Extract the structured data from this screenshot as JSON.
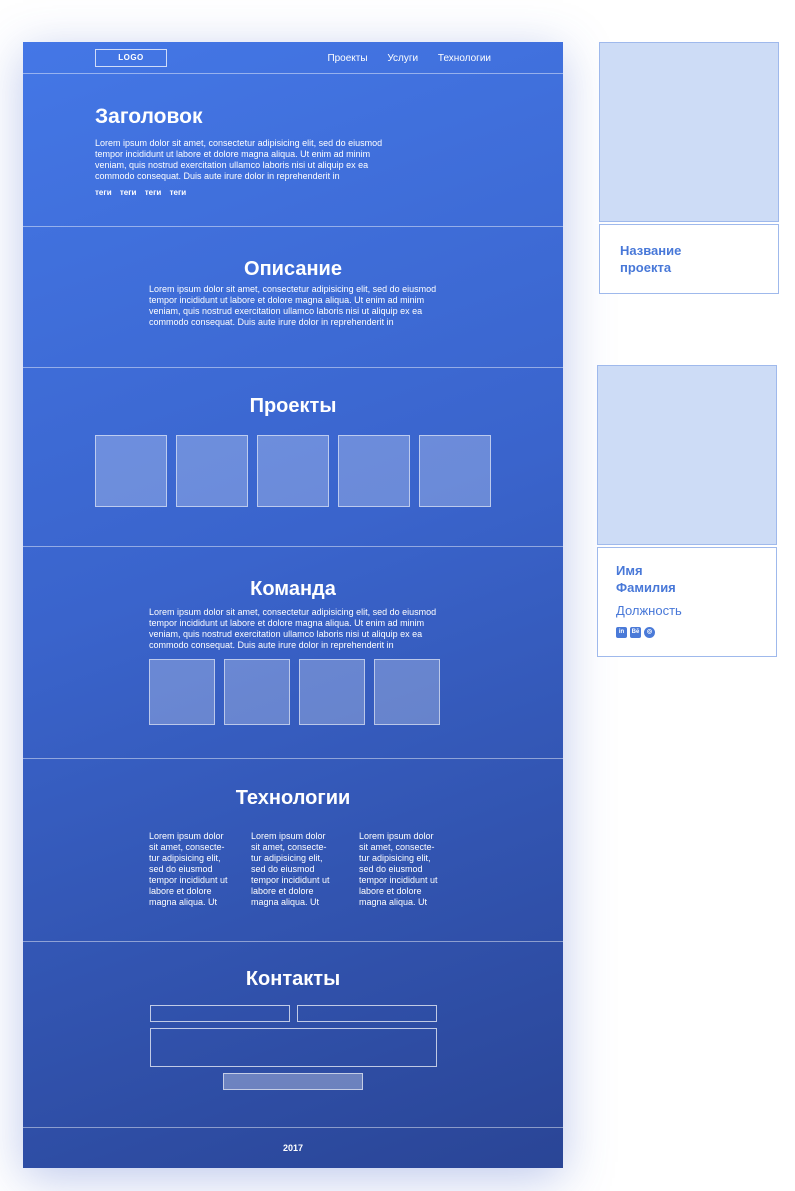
{
  "header": {
    "logo": "LOGO",
    "nav": [
      "Проекты",
      "Услуги",
      "Технологии"
    ]
  },
  "hero": {
    "title": "Заголовок",
    "text": "Lorem ipsum dolor sit amet, consectetur adipisicing elit, sed do eiusmod tempor incididunt ut labore et dolore magna aliqua. Ut enim ad minim veniam, quis nostrud exercitation ullamco laboris nisi ut aliquip ex ea commodo consequat. Duis aute irure dolor in reprehenderit in",
    "tags": [
      "теги",
      "теги",
      "теги",
      "теги"
    ]
  },
  "description": {
    "title": "Описание",
    "text": "Lorem ipsum dolor sit amet, consectetur adipisicing elit, sed do eiusmod tempor incididunt ut labore et dolore magna aliqua. Ut enim ad minim veniam, quis nostrud exercitation ullamco laboris nisi ut aliquip ex ea commodo consequat. Duis aute irure dolor in reprehenderit in"
  },
  "projects": {
    "title": "Проекты"
  },
  "team": {
    "title": "Команда",
    "text": "Lorem ipsum dolor sit amet, consectetur adipisicing elit, sed do eiusmod tempor incididunt ut labore et dolore magna aliqua. Ut enim ad minim veniam, quis nostrud exercitation ullamco laboris nisi ut aliquip ex ea commodo consequat. Duis aute irure dolor in reprehenderit in"
  },
  "technologies": {
    "title": "Технологии",
    "columns": [
      "Lorem ipsum dolor sit amet, consecte-tur adipisicing elit, sed do eiusmod tempor incididunt ut labore et dolore magna aliqua. Ut",
      "Lorem ipsum dolor sit amet, consecte-tur adipisicing elit, sed do eiusmod tempor incididunt ut labore et dolore magna aliqua. Ut",
      "Lorem ipsum dolor sit amet, consecte-tur adipisicing elit, sed do eiusmod tempor incididunt ut labore et dolore magna aliqua. Ut"
    ]
  },
  "contacts": {
    "title": "Контакты"
  },
  "footer": {
    "year": "2017"
  },
  "project_card": {
    "title": "Название проекта"
  },
  "member_card": {
    "first_name": "Имя",
    "last_name": "Фамилия",
    "role": "Должность",
    "social": {
      "linkedin": "in",
      "behance": "Bē",
      "dribbble": "◎"
    }
  },
  "colors": {
    "accent": "#4878d8",
    "gradient_top": "#4477e6",
    "gradient_bottom": "#2a4596",
    "card_fill": "#cddcf6"
  }
}
